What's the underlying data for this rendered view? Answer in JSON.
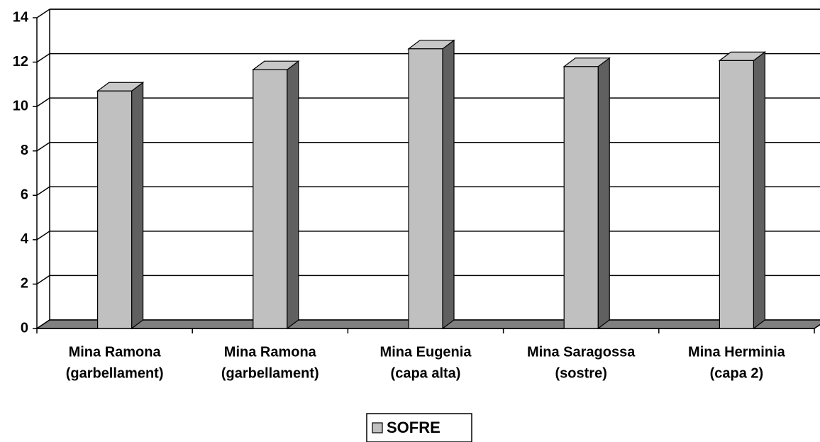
{
  "chart_data": {
    "type": "bar3d",
    "categories": [
      [
        "Mina Ramona",
        "(garbellament)"
      ],
      [
        "Mina Ramona",
        "(garbellament)"
      ],
      [
        "Mina Eugenia",
        "(capa alta)"
      ],
      [
        "Mina Saragossa",
        "(sostre)"
      ],
      [
        "Mina Herminia",
        "(capa 2)"
      ]
    ],
    "series": [
      {
        "name": "SOFRE",
        "color": "#c0c0c0",
        "values": [
          10.7,
          11.66,
          12.6,
          11.8,
          12.07
        ]
      }
    ],
    "ylim": [
      0,
      14
    ],
    "yticks": [
      0,
      2,
      4,
      6,
      8,
      10,
      12,
      14
    ],
    "grid": true,
    "legend": "bottom"
  }
}
